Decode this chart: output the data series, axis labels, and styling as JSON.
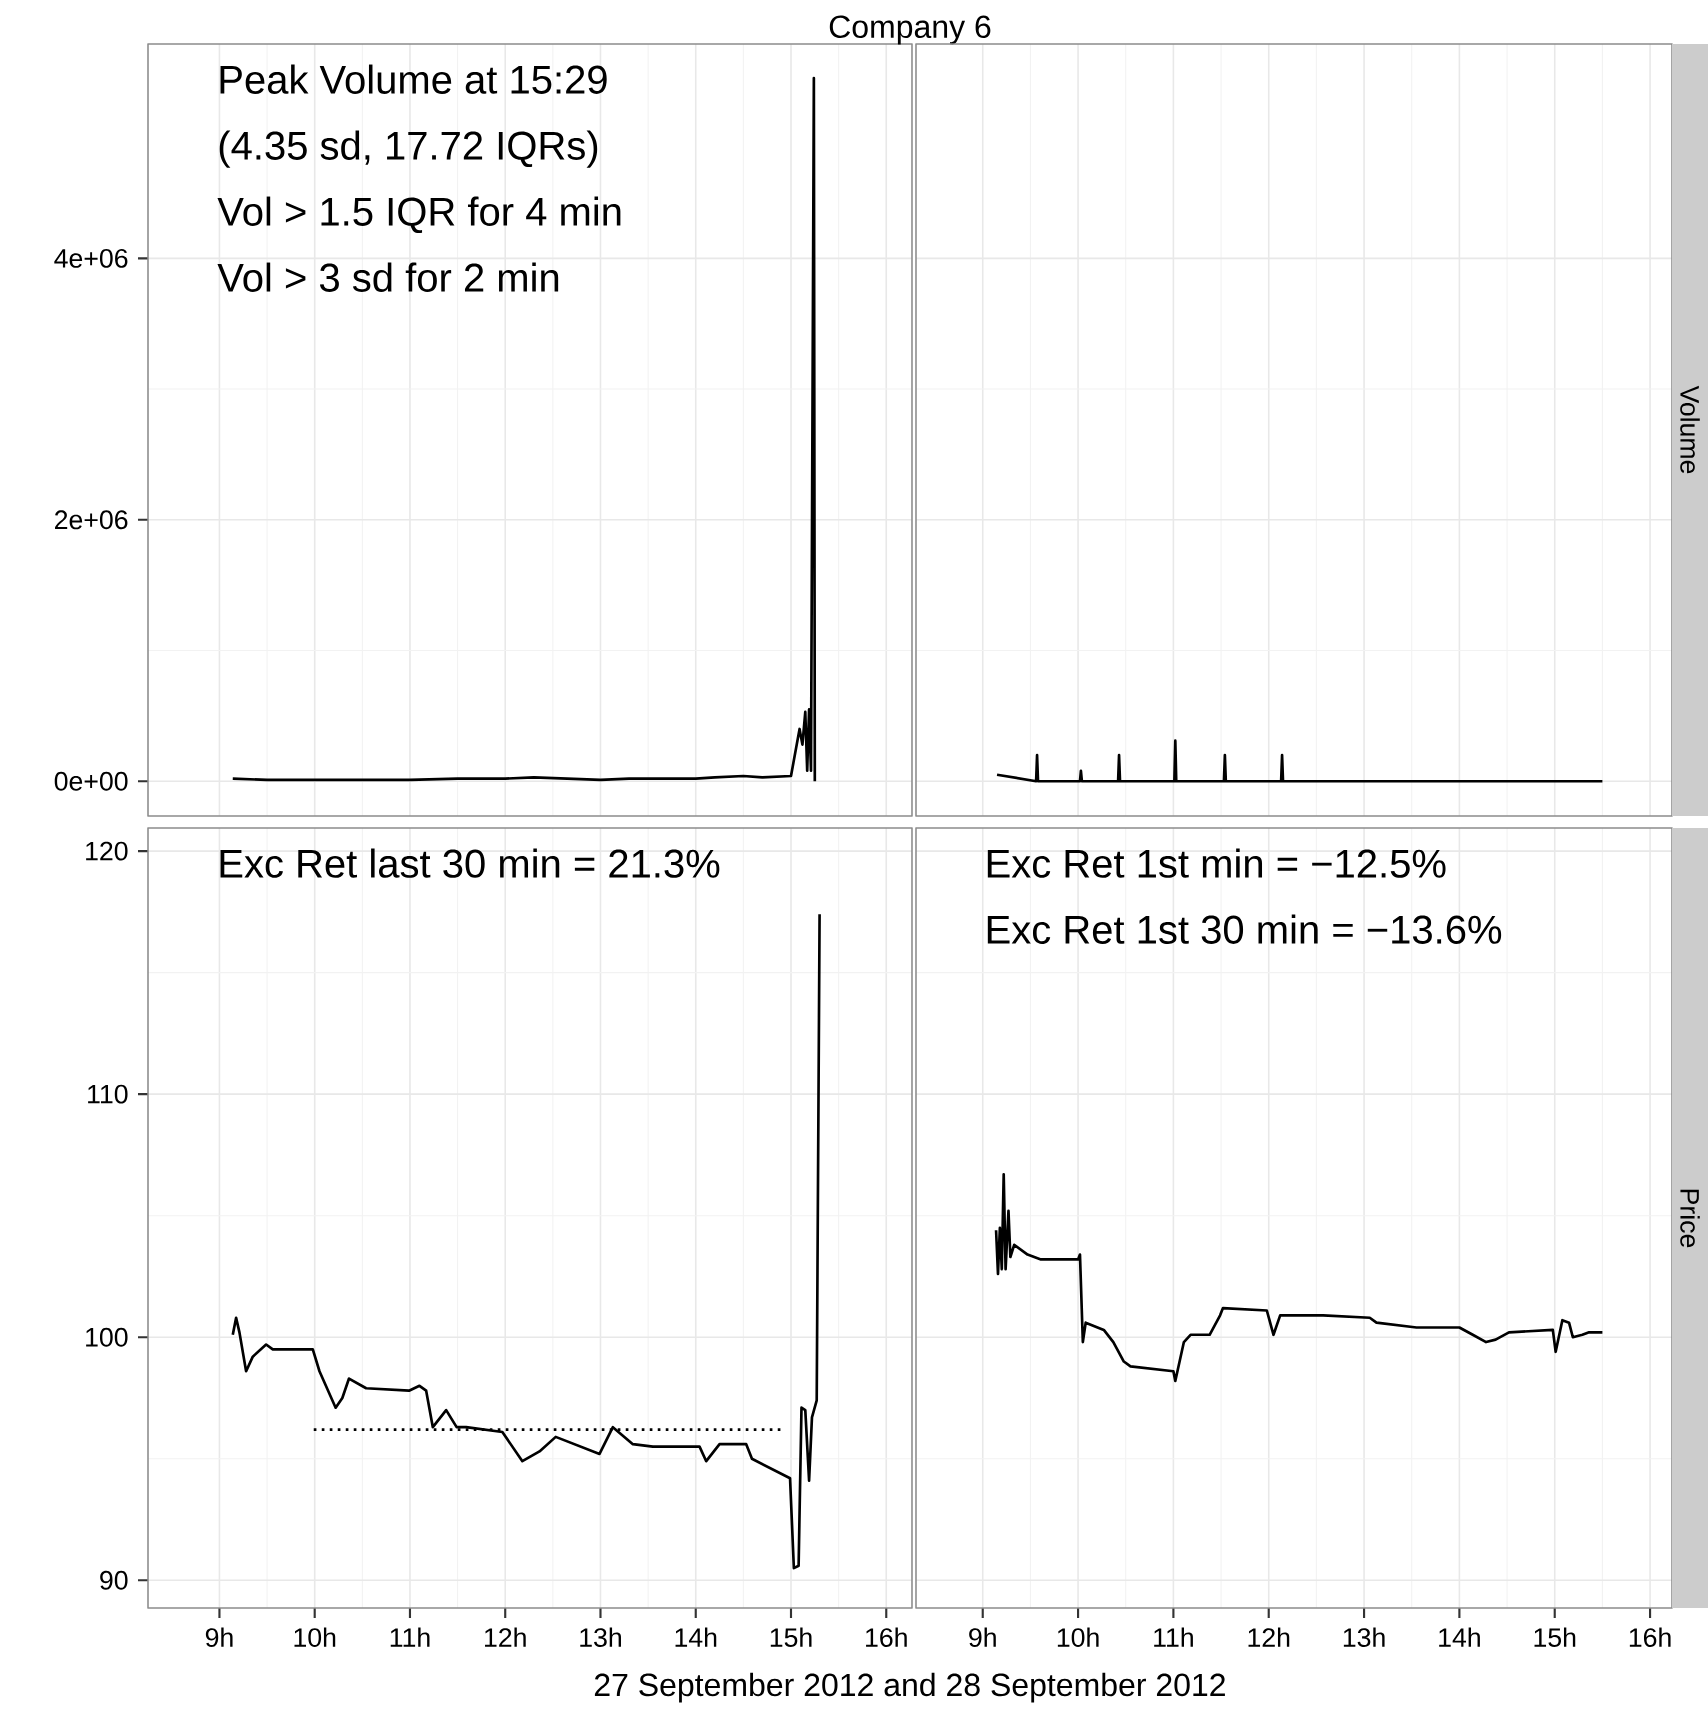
{
  "chart_data": [
    {
      "type": "line",
      "title": "Company 6",
      "xlim": [
        8.25,
        16.27
      ],
      "ylim": [
        -266000,
        5640000
      ],
      "grid": true,
      "tick_labels": "y",
      "xticks": [
        {
          "value": 9,
          "label": null
        },
        {
          "value": 10,
          "label": null
        },
        {
          "value": 11,
          "label": null
        },
        {
          "value": 12,
          "label": null
        },
        {
          "value": 13,
          "label": null
        },
        {
          "value": 14,
          "label": null
        },
        {
          "value": 15,
          "label": null
        },
        {
          "value": 16,
          "label": null
        }
      ],
      "yticks": [
        {
          "value": 0,
          "label": "0e+00"
        },
        {
          "value": 2000000,
          "label": "2e+06"
        },
        {
          "value": 4000000,
          "label": "4e+06"
        }
      ],
      "annotations": [
        "Peak Volume at 15:29",
        "(4.35 sd, 17.72 IQRs)",
        "Vol > 1.5 IQR for 4 min",
        "Vol > 3 sd for 2 min"
      ],
      "series": [
        {
          "color": "#000000",
          "x": [
            9.14,
            9.5,
            10.0,
            10.3,
            11.0,
            11.5,
            12.0,
            12.3,
            13.0,
            13.3,
            14.0,
            14.2,
            14.5,
            14.7,
            15.0,
            15.09,
            15.12,
            15.15,
            15.17,
            15.19,
            15.21,
            15.24,
            15.25
          ],
          "values": [
            20000,
            10000,
            10000,
            10000,
            10000,
            20000,
            20000,
            30000,
            10000,
            20000,
            20000,
            30000,
            40000,
            30000,
            40000,
            400000,
            280000,
            530000,
            80000,
            550000,
            80000,
            5380000,
            0
          ]
        }
      ]
    },
    {
      "type": "line",
      "ylabel": "Volume",
      "xlim": [
        8.3,
        16.23
      ],
      "ylim": [
        -266000,
        5640000
      ],
      "grid": true,
      "tick_labels": false,
      "xticks": [
        {
          "value": 9,
          "label": null
        },
        {
          "value": 10,
          "label": null
        },
        {
          "value": 11,
          "label": null
        },
        {
          "value": 12,
          "label": null
        },
        {
          "value": 13,
          "label": null
        },
        {
          "value": 14,
          "label": null
        },
        {
          "value": 15,
          "label": null
        },
        {
          "value": 16,
          "label": null
        }
      ],
      "yticks": [
        {
          "value": 0,
          "label": null
        },
        {
          "value": 2000000,
          "label": null
        },
        {
          "value": 4000000,
          "label": null
        }
      ],
      "series": [
        {
          "color": "#000000",
          "x": [
            9.15,
            9.56,
            9.57,
            9.58,
            10.02,
            10.03,
            10.04,
            10.42,
            10.43,
            10.44,
            11.01,
            11.02,
            11.03,
            11.53,
            11.54,
            11.55,
            12.13,
            12.14,
            12.15,
            15.5
          ],
          "values": [
            50000,
            0,
            200000,
            0,
            0,
            80000,
            0,
            0,
            200000,
            0,
            0,
            310000,
            0,
            0,
            200000,
            0,
            0,
            200000,
            0,
            0
          ]
        }
      ]
    },
    {
      "type": "line",
      "xlabel": "27 September 2012 and 28 September 2012",
      "xlim": [
        8.25,
        16.27
      ],
      "ylim": [
        88.86,
        120.95
      ],
      "grid": true,
      "xticks": [
        {
          "value": 9,
          "label": "9h"
        },
        {
          "value": 10,
          "label": "10h"
        },
        {
          "value": 11,
          "label": "11h"
        },
        {
          "value": 12,
          "label": "12h"
        },
        {
          "value": 13,
          "label": "13h"
        },
        {
          "value": 14,
          "label": "14h"
        },
        {
          "value": 15,
          "label": "15h"
        },
        {
          "value": 16,
          "label": "16h"
        }
      ],
      "yticks": [
        90,
        100,
        110,
        120
      ],
      "annotations": [
        "Exc Ret last 30 min = 21.3%"
      ],
      "series": [
        {
          "color": "#000000",
          "x": [
            9.14,
            9.175,
            9.21,
            9.28,
            9.35,
            9.49,
            9.56,
            9.98,
            10.05,
            10.22,
            10.29,
            10.36,
            10.54,
            10.99,
            11.1,
            11.17,
            11.24,
            11.38,
            11.49,
            11.59,
            11.97,
            12.18,
            12.36,
            12.53,
            12.99,
            13.13,
            13.34,
            13.55,
            14.04,
            14.11,
            14.25,
            14.53,
            14.59,
            14.99,
            15.03,
            15.08,
            15.11,
            15.15,
            15.19,
            15.22,
            15.27,
            15.3
          ],
          "values": [
            100.1,
            100.8,
            100.2,
            98.6,
            99.2,
            99.7,
            99.5,
            99.5,
            98.6,
            97.1,
            97.5,
            98.3,
            97.9,
            97.8,
            98.0,
            97.8,
            96.3,
            97.0,
            96.3,
            96.3,
            96.1,
            94.9,
            95.3,
            95.9,
            95.2,
            96.3,
            95.6,
            95.5,
            95.5,
            94.9,
            95.6,
            95.6,
            95.0,
            94.2,
            90.5,
            90.6,
            97.1,
            97.0,
            94.1,
            96.7,
            97.4,
            117.4
          ]
        },
        {
          "color": "#000000",
          "line_style": "dotted",
          "x": [
            9.99,
            14.91
          ],
          "values": [
            96.2,
            96.2
          ]
        }
      ]
    },
    {
      "type": "line",
      "ylabel": "Price",
      "xlim": [
        8.3,
        16.23
      ],
      "ylim": [
        88.86,
        120.95
      ],
      "grid": true,
      "tick_labels": "x",
      "xticks": [
        {
          "value": 9,
          "label": "9h"
        },
        {
          "value": 10,
          "label": "10h"
        },
        {
          "value": 11,
          "label": "11h"
        },
        {
          "value": 12,
          "label": "12h"
        },
        {
          "value": 13,
          "label": "13h"
        },
        {
          "value": 14,
          "label": "14h"
        },
        {
          "value": 15,
          "label": "15h"
        },
        {
          "value": 16,
          "label": "16h"
        }
      ],
      "yticks": [
        {
          "value": 90,
          "label": null
        },
        {
          "value": 100,
          "label": null
        },
        {
          "value": 110,
          "label": null
        },
        {
          "value": 120,
          "label": null
        }
      ],
      "annotations": [
        "Exc Ret 1st min = −12.5%",
        "Exc Ret 1st 30 min = −13.6%"
      ],
      "series": [
        {
          "color": "#000000",
          "x": [
            9.14,
            9.16,
            9.18,
            9.2,
            9.22,
            9.24,
            9.27,
            9.29,
            9.33,
            9.47,
            9.61,
            10.0,
            10.02,
            10.05,
            10.08,
            10.27,
            10.37,
            10.48,
            10.55,
            11.0,
            11.02,
            11.11,
            11.18,
            11.38,
            11.49,
            11.52,
            11.98,
            12.05,
            12.12,
            12.57,
            13.06,
            13.13,
            13.55,
            14.0,
            14.14,
            14.28,
            14.38,
            14.52,
            14.98,
            15.01,
            15.08,
            15.15,
            15.19,
            15.29,
            15.36,
            15.5
          ],
          "values": [
            104.4,
            102.6,
            104.5,
            102.8,
            106.7,
            102.8,
            105.2,
            103.3,
            103.8,
            103.4,
            103.2,
            103.2,
            103.4,
            99.8,
            100.6,
            100.3,
            99.8,
            99.0,
            98.8,
            98.6,
            98.2,
            99.8,
            100.1,
            100.1,
            100.9,
            101.2,
            101.1,
            100.1,
            100.9,
            100.9,
            100.8,
            100.6,
            100.4,
            100.4,
            100.1,
            99.8,
            99.9,
            100.2,
            100.3,
            99.4,
            100.7,
            100.6,
            100.0,
            100.1,
            100.2,
            100.2
          ]
        }
      ]
    }
  ]
}
